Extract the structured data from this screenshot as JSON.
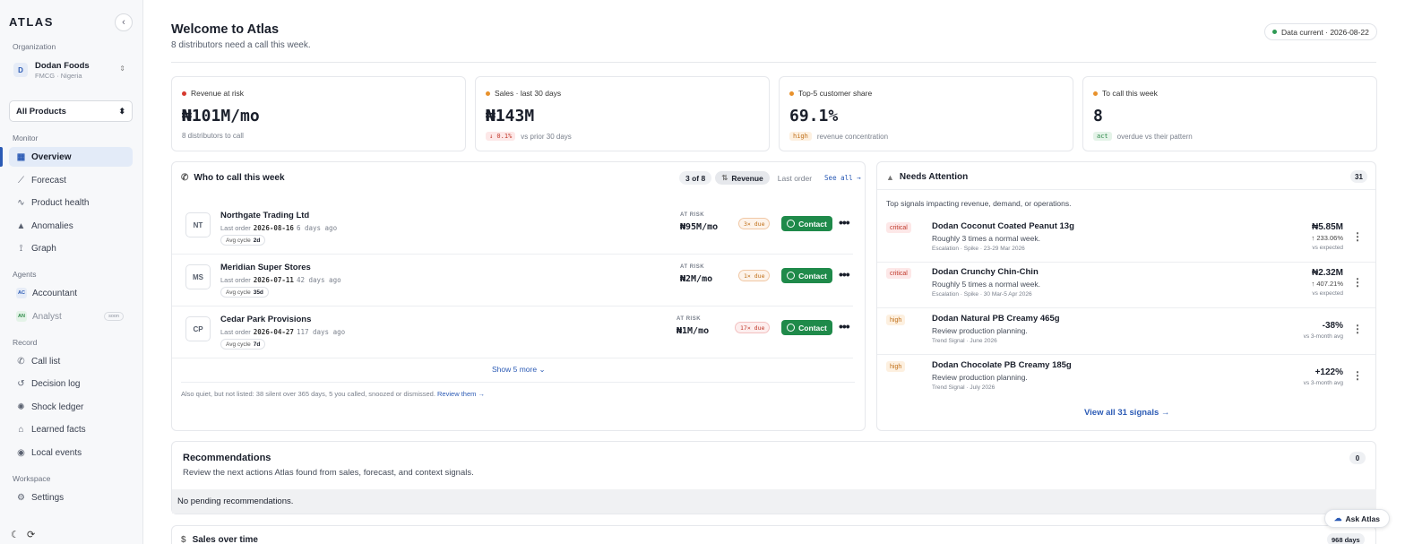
{
  "sidebar": {
    "brand": "ATLAS",
    "org_section": "Organization",
    "org": {
      "initial": "D",
      "name": "Dodan Foods",
      "sub": "FMCG · Nigeria"
    },
    "product_select": "All Products",
    "monitor_section": "Monitor",
    "monitor": [
      {
        "label": "Overview",
        "icon": "grid-icon"
      },
      {
        "label": "Forecast",
        "icon": "chart-line-icon"
      },
      {
        "label": "Product health",
        "icon": "pulse-icon"
      },
      {
        "label": "Anomalies",
        "icon": "warning-icon"
      },
      {
        "label": "Graph",
        "icon": "graph-icon"
      }
    ],
    "agents_section": "Agents",
    "agents": [
      {
        "label": "Accountant",
        "initials": "AC"
      },
      {
        "label": "Analyst",
        "initials": "AN",
        "badge": "soon"
      }
    ],
    "record_section": "Record",
    "record": [
      {
        "label": "Call list",
        "icon": "phone-icon"
      },
      {
        "label": "Decision log",
        "icon": "history-icon"
      },
      {
        "label": "Shock ledger",
        "icon": "gear-icon"
      },
      {
        "label": "Learned facts",
        "icon": "cap-icon"
      },
      {
        "label": "Local events",
        "icon": "pin-icon"
      }
    ],
    "workspace_section": "Workspace",
    "workspace": [
      {
        "label": "Settings",
        "icon": "gear-icon"
      }
    ]
  },
  "header": {
    "title": "Welcome to Atlas",
    "subtitle": "8 distributors need a call this week.",
    "data_current": "Data current · 2026-08-22"
  },
  "kpis": [
    {
      "label": "Revenue at risk",
      "value": "₦101M/mo",
      "chip": "",
      "sub": "8 distributors to call",
      "color": "#d63a2f"
    },
    {
      "label": "Sales · last 30 days",
      "value": "₦143M",
      "chip": "↓ 0.1%",
      "sub": "vs prior 30 days",
      "color": "#e8912c"
    },
    {
      "label": "Top-5 customer share",
      "value": "69.1%",
      "chip": "high",
      "sub": "revenue concentration",
      "color": "#e8912c"
    },
    {
      "label": "To call this week",
      "value": "8",
      "chip": "act",
      "sub": "overdue vs their pattern",
      "color": "#e8912c"
    }
  ],
  "who_to_call": {
    "title": "Who to call this week",
    "count": "3 of 8",
    "sort_revenue": "Revenue",
    "sort_last_order": "Last order",
    "see_all": "See all →",
    "last_order_label": "Last order",
    "avg_cycle_label": "Avg cycle",
    "at_risk_label": "AT RISK",
    "contact_label": "Contact",
    "rows": [
      {
        "initials": "NT",
        "name": "Northgate Trading Ltd",
        "last_date": "2026-08-16",
        "ago": "6 days ago",
        "cycle": "2d",
        "risk": "₦95M/mo",
        "due": "3× due"
      },
      {
        "initials": "MS",
        "name": "Meridian Super Stores",
        "last_date": "2026-07-11",
        "ago": "42 days ago",
        "cycle": "35d",
        "risk": "₦2M/mo",
        "due": "1× due"
      },
      {
        "initials": "CP",
        "name": "Cedar Park Provisions",
        "last_date": "2026-04-27",
        "ago": "117 days ago",
        "cycle": "7d",
        "risk": "₦1M/mo",
        "due": "17× due"
      }
    ],
    "show_more": "Show 5 more",
    "quiet_note": "Also quiet, but not listed: 38 silent over 365 days, 5 you called, snoozed or dismissed.",
    "review_link": "Review them →"
  },
  "needs_attention": {
    "title": "Needs Attention",
    "count": "31",
    "subtitle": "Top signals impacting revenue, demand, or operations.",
    "signals": [
      {
        "severity": "critical",
        "name": "Dodan Coconut Coated Peanut 13g",
        "desc": "Roughly 3 times a normal week.",
        "meta": "Escalation · Spike · 23-29 Mar 2026",
        "value": "₦5.85M",
        "change": "↑ 233.06%",
        "sub": "vs expected"
      },
      {
        "severity": "critical",
        "name": "Dodan Crunchy Chin-Chin",
        "desc": "Roughly 5 times a normal week.",
        "meta": "Escalation · Spike · 30 Mar-5 Apr 2026",
        "value": "₦2.32M",
        "change": "↑ 407.21%",
        "sub": "vs expected"
      },
      {
        "severity": "high",
        "name": "Dodan Natural PB Creamy 465g",
        "desc": "Review production planning.",
        "meta": "Trend Signal · June 2026",
        "value": "-38%",
        "change": "",
        "sub": "vs 3-month avg"
      },
      {
        "severity": "high",
        "name": "Dodan Chocolate PB Creamy 185g",
        "desc": "Review production planning.",
        "meta": "Trend Signal · July 2026",
        "value": "+122%",
        "change": "",
        "sub": "vs 3-month avg"
      }
    ],
    "view_all": "View all 31 signals"
  },
  "recommendations": {
    "title": "Recommendations",
    "subtitle": "Review the next actions Atlas found from sales, forecast, and context signals.",
    "count": "0",
    "empty": "No pending recommendations."
  },
  "sales": {
    "title": "Sales over time",
    "badge": "968 days"
  },
  "ask_atlas": "Ask Atlas"
}
